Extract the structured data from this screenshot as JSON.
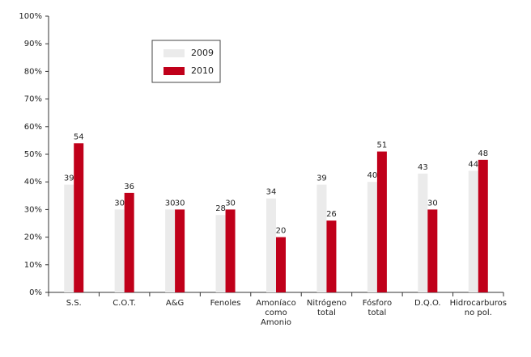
{
  "chart_data": {
    "type": "bar",
    "categories": [
      "S.S.",
      "C.O.T.",
      "A&G",
      "Fenoles",
      "Amoníaco\ncomo\nAmonio",
      "Nitrógeno\ntotal",
      "Fósforo\ntotal",
      "D.Q.O.",
      "Hidrocarburos\nno pol."
    ],
    "series": [
      {
        "name": "2009",
        "color": "#ebebeb",
        "values": [
          39,
          30,
          30,
          28,
          34,
          39,
          40,
          43,
          44
        ]
      },
      {
        "name": "2010",
        "color": "#c0001a",
        "values": [
          54,
          36,
          30,
          30,
          20,
          26,
          51,
          30,
          48
        ]
      }
    ],
    "ylim": [
      0,
      100
    ],
    "yticks": [
      {
        "value": 0,
        "label": "0%"
      },
      {
        "value": 10,
        "label": "10%"
      },
      {
        "value": 20,
        "label": "20%"
      },
      {
        "value": 30,
        "label": "30%"
      },
      {
        "value": 40,
        "label": "40%"
      },
      {
        "value": 50,
        "label": "50%"
      },
      {
        "value": 60,
        "label": "60%"
      },
      {
        "value": 70,
        "label": "70%"
      },
      {
        "value": 80,
        "label": "80%"
      },
      {
        "value": 90,
        "label": "90%"
      },
      {
        "value": 100,
        "label": "100%"
      }
    ],
    "grid": false,
    "legend": "upper-left"
  }
}
